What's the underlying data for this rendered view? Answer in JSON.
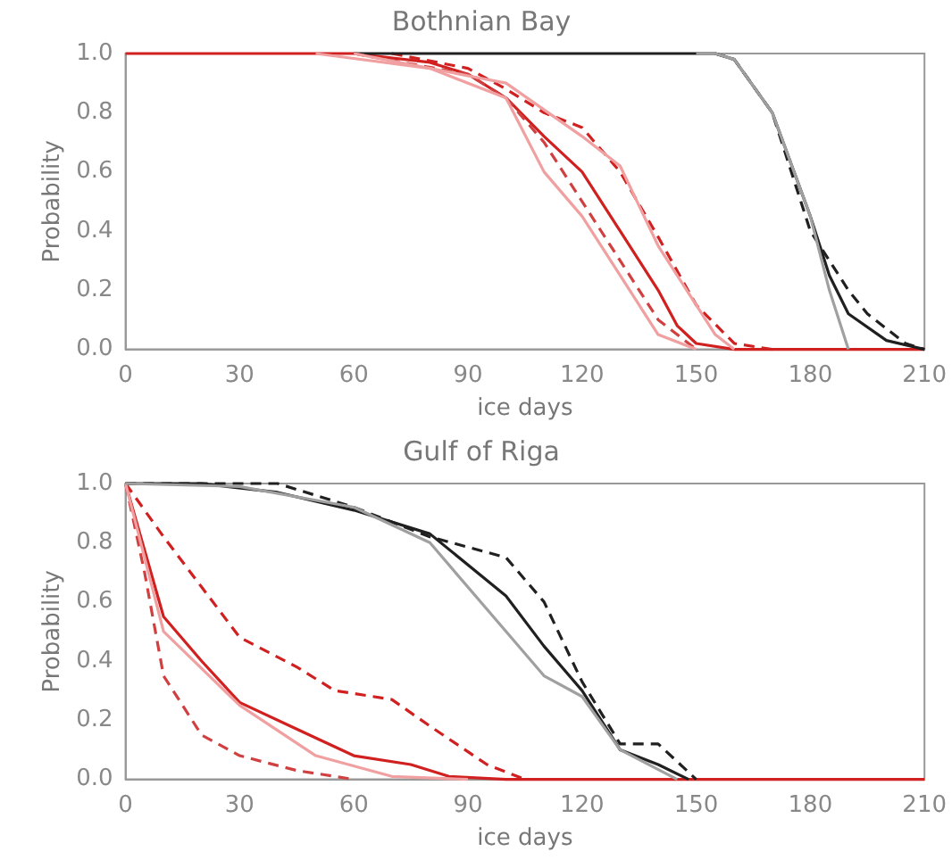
{
  "chart_data": [
    {
      "type": "line",
      "title": "Bothnian Bay",
      "xlabel": "ice days",
      "ylabel": "Probability",
      "xlim": [
        0,
        210
      ],
      "ylim": [
        0,
        1
      ],
      "xticks": [
        0,
        30,
        60,
        90,
        120,
        150,
        180,
        210
      ],
      "yticks": [
        {
          "value": 0,
          "label": "0.0"
        },
        {
          "value": 0.2,
          "label": "0.2"
        },
        {
          "value": 0.4,
          "label": "0.4"
        },
        {
          "value": 0.6,
          "label": "0.6"
        },
        {
          "value": 0.8,
          "label": "0.8"
        },
        {
          "value": 1,
          "label": "1.0"
        }
      ],
      "grid": false,
      "legend": false,
      "marker": "none",
      "series": [
        {
          "color": "#a0a0a0",
          "line_style": "solid",
          "x": [
            150,
            155,
            160,
            170,
            180,
            185,
            190
          ],
          "values": [
            1,
            1,
            0.98,
            0.8,
            0.45,
            0.2,
            0
          ]
        },
        {
          "color": "#f0a0a0",
          "line_style": "solid",
          "x": [
            50,
            80,
            100,
            110,
            120,
            130,
            140,
            150
          ],
          "values": [
            1,
            0.95,
            0.85,
            0.6,
            0.45,
            0.25,
            0.05,
            0
          ]
        },
        {
          "color": "#f0a0a0",
          "line_style": "solid",
          "x": [
            60,
            100,
            120,
            130,
            140,
            150,
            155,
            160
          ],
          "values": [
            1,
            0.9,
            0.72,
            0.62,
            0.35,
            0.15,
            0.05,
            0
          ]
        },
        {
          "color": "#d04040",
          "line_style": "dashed",
          "x": [
            60,
            90,
            100,
            110,
            120,
            130,
            140,
            150
          ],
          "values": [
            1,
            0.93,
            0.85,
            0.7,
            0.5,
            0.3,
            0.1,
            0
          ]
        },
        {
          "color": "#202020",
          "line_style": "dashed",
          "x": [
            155,
            160,
            170,
            180,
            190,
            195,
            205,
            210
          ],
          "values": [
            1,
            0.98,
            0.8,
            0.4,
            0.2,
            0.12,
            0.02,
            0
          ]
        },
        {
          "color": "#202020",
          "line_style": "solid",
          "x": [
            60,
            155,
            160,
            170,
            180,
            185,
            190,
            200,
            210
          ],
          "values": [
            1,
            1,
            0.98,
            0.8,
            0.45,
            0.25,
            0.12,
            0.03,
            0
          ]
        },
        {
          "color": "#d02020",
          "line_style": "dashed",
          "x": [
            70,
            90,
            100,
            110,
            120,
            130,
            140,
            150,
            160,
            170
          ],
          "values": [
            1,
            0.95,
            0.88,
            0.8,
            0.75,
            0.6,
            0.38,
            0.15,
            0.02,
            0
          ]
        },
        {
          "color": "#d02020",
          "line_style": "solid",
          "x": [
            0,
            60,
            80,
            90,
            100,
            110,
            120,
            130,
            140,
            145,
            150,
            160,
            210
          ],
          "values": [
            1,
            1,
            0.97,
            0.93,
            0.85,
            0.72,
            0.6,
            0.4,
            0.2,
            0.08,
            0.02,
            0,
            0
          ]
        }
      ]
    },
    {
      "type": "line",
      "title": "Gulf of Riga",
      "xlabel": "ice days",
      "ylabel": "Probability",
      "xlim": [
        0,
        210
      ],
      "ylim": [
        0,
        1
      ],
      "xticks": [
        0,
        30,
        60,
        90,
        120,
        150,
        180,
        210
      ],
      "yticks": [
        {
          "value": 0,
          "label": "0.0"
        },
        {
          "value": 0.2,
          "label": "0.2"
        },
        {
          "value": 0.4,
          "label": "0.4"
        },
        {
          "value": 0.6,
          "label": "0.6"
        },
        {
          "value": 0.8,
          "label": "0.8"
        },
        {
          "value": 1,
          "label": "1.0"
        }
      ],
      "grid": false,
      "legend": false,
      "marker": "none",
      "series": [
        {
          "color": "#a0a0a0",
          "line_style": "solid",
          "x": [
            0,
            30,
            60,
            80,
            100,
            110,
            120,
            130,
            145
          ],
          "values": [
            1,
            0.99,
            0.92,
            0.8,
            0.5,
            0.35,
            0.28,
            0.1,
            0
          ]
        },
        {
          "color": "#f0a0a0",
          "line_style": "solid",
          "x": [
            0,
            5,
            10,
            30,
            50,
            70,
            90
          ],
          "values": [
            1,
            0.75,
            0.5,
            0.25,
            0.08,
            0.01,
            0
          ]
        },
        {
          "color": "#d04040",
          "line_style": "dashed",
          "x": [
            0,
            5,
            10,
            20,
            30,
            45,
            60
          ],
          "values": [
            1,
            0.7,
            0.35,
            0.15,
            0.08,
            0.03,
            0
          ]
        },
        {
          "color": "#202020",
          "line_style": "dashed",
          "x": [
            0,
            20,
            40,
            60,
            80,
            100,
            110,
            120,
            130,
            140,
            150
          ],
          "values": [
            1,
            1,
            1,
            0.92,
            0.82,
            0.75,
            0.6,
            0.33,
            0.12,
            0.12,
            0
          ]
        },
        {
          "color": "#202020",
          "line_style": "solid",
          "x": [
            0,
            20,
            40,
            60,
            80,
            100,
            110,
            120,
            130,
            140,
            148
          ],
          "values": [
            1,
            1,
            0.97,
            0.91,
            0.83,
            0.62,
            0.45,
            0.3,
            0.1,
            0.05,
            0
          ]
        },
        {
          "color": "#d02020",
          "line_style": "dashed",
          "x": [
            0,
            10,
            20,
            30,
            45,
            55,
            70,
            80,
            95,
            105
          ],
          "values": [
            1,
            0.82,
            0.65,
            0.48,
            0.38,
            0.3,
            0.27,
            0.18,
            0.05,
            0
          ]
        },
        {
          "color": "#d02020",
          "line_style": "solid",
          "x": [
            0,
            10,
            20,
            30,
            45,
            60,
            75,
            85,
            100,
            210
          ],
          "values": [
            1,
            0.55,
            0.4,
            0.26,
            0.17,
            0.08,
            0.05,
            0.01,
            0,
            0
          ]
        }
      ]
    }
  ]
}
